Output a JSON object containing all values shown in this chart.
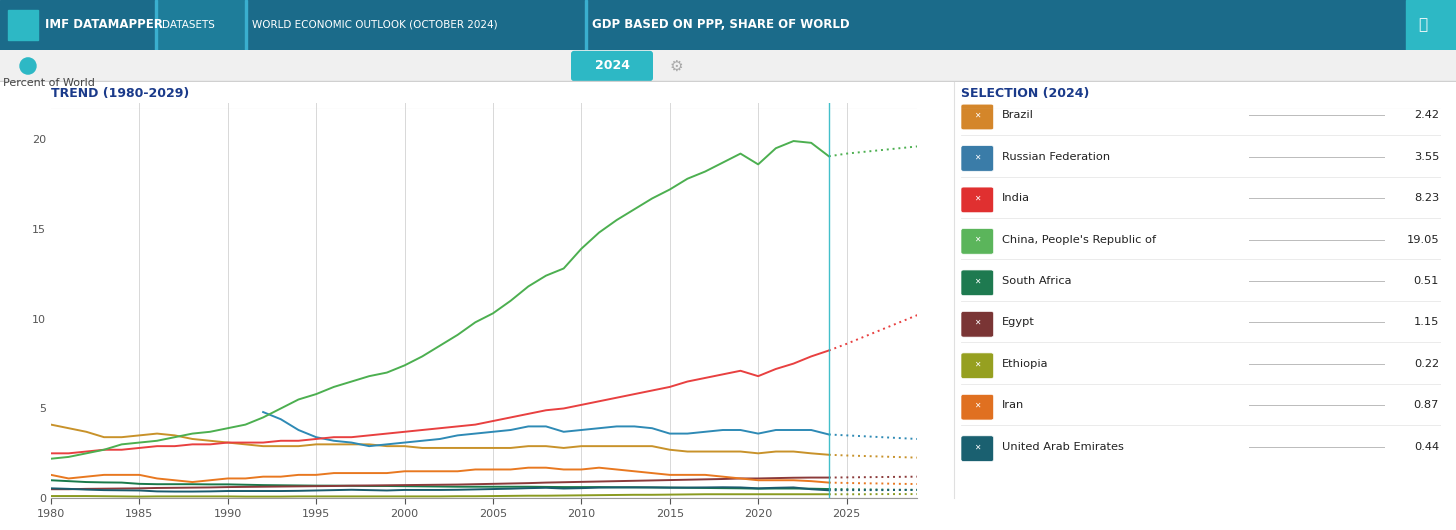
{
  "title_left": "TREND (1980-2029)",
  "title_right": "SELECTION (2024)",
  "ylabel": "Percent of World",
  "year_marker": 2024,
  "xlim": [
    1980,
    2029
  ],
  "ylim": [
    0,
    22
  ],
  "yticks": [
    0,
    5,
    10,
    15,
    20
  ],
  "xticks": [
    1980,
    1985,
    1990,
    1995,
    2000,
    2005,
    2010,
    2015,
    2020,
    2025
  ],
  "countries": [
    "Brazil",
    "Russian Federation",
    "India",
    "China, People's Republic of",
    "South Africa",
    "Egypt",
    "Ethiopia",
    "Iran",
    "United Arab Emirates"
  ],
  "values_2024": [
    2.42,
    3.55,
    8.23,
    19.05,
    0.51,
    1.15,
    0.22,
    0.87,
    0.44
  ],
  "icon_colors": [
    "#d4862a",
    "#3a7ca8",
    "#e03030",
    "#5bb55b",
    "#1e7a50",
    "#7a3535",
    "#96a020",
    "#e07020",
    "#1a6070"
  ],
  "series": {
    "Brazil": {
      "years": [
        1980,
        1981,
        1982,
        1983,
        1984,
        1985,
        1986,
        1987,
        1988,
        1989,
        1990,
        1991,
        1992,
        1993,
        1994,
        1995,
        1996,
        1997,
        1998,
        1999,
        2000,
        2001,
        2002,
        2003,
        2004,
        2005,
        2006,
        2007,
        2008,
        2009,
        2010,
        2011,
        2012,
        2013,
        2014,
        2015,
        2016,
        2017,
        2018,
        2019,
        2020,
        2021,
        2022,
        2023,
        2024,
        2025,
        2026,
        2027,
        2028,
        2029
      ],
      "values": [
        4.1,
        3.9,
        3.7,
        3.4,
        3.4,
        3.5,
        3.6,
        3.5,
        3.3,
        3.2,
        3.1,
        3.0,
        2.9,
        2.9,
        2.9,
        3.0,
        3.0,
        3.0,
        3.0,
        2.9,
        2.9,
        2.8,
        2.8,
        2.8,
        2.8,
        2.8,
        2.8,
        2.9,
        2.9,
        2.8,
        2.9,
        2.9,
        2.9,
        2.9,
        2.9,
        2.7,
        2.6,
        2.6,
        2.6,
        2.6,
        2.5,
        2.6,
        2.6,
        2.5,
        2.42,
        2.38,
        2.35,
        2.32,
        2.29,
        2.26
      ]
    },
    "Russian Federation": {
      "years": [
        1992,
        1993,
        1994,
        1995,
        1996,
        1997,
        1998,
        1999,
        2000,
        2001,
        2002,
        2003,
        2004,
        2005,
        2006,
        2007,
        2008,
        2009,
        2010,
        2011,
        2012,
        2013,
        2014,
        2015,
        2016,
        2017,
        2018,
        2019,
        2020,
        2021,
        2022,
        2023,
        2024,
        2025,
        2026,
        2027,
        2028,
        2029
      ],
      "values": [
        4.8,
        4.4,
        3.8,
        3.4,
        3.2,
        3.1,
        2.9,
        3.0,
        3.1,
        3.2,
        3.3,
        3.5,
        3.6,
        3.7,
        3.8,
        4.0,
        4.0,
        3.7,
        3.8,
        3.9,
        4.0,
        4.0,
        3.9,
        3.6,
        3.6,
        3.7,
        3.8,
        3.8,
        3.6,
        3.8,
        3.8,
        3.8,
        3.55,
        3.5,
        3.45,
        3.4,
        3.35,
        3.3
      ]
    },
    "India": {
      "years": [
        1980,
        1981,
        1982,
        1983,
        1984,
        1985,
        1986,
        1987,
        1988,
        1989,
        1990,
        1991,
        1992,
        1993,
        1994,
        1995,
        1996,
        1997,
        1998,
        1999,
        2000,
        2001,
        2002,
        2003,
        2004,
        2005,
        2006,
        2007,
        2008,
        2009,
        2010,
        2011,
        2012,
        2013,
        2014,
        2015,
        2016,
        2017,
        2018,
        2019,
        2020,
        2021,
        2022,
        2023,
        2024,
        2025,
        2026,
        2027,
        2028,
        2029
      ],
      "values": [
        2.5,
        2.5,
        2.6,
        2.7,
        2.7,
        2.8,
        2.9,
        2.9,
        3.0,
        3.0,
        3.1,
        3.1,
        3.1,
        3.2,
        3.2,
        3.3,
        3.4,
        3.4,
        3.5,
        3.6,
        3.7,
        3.8,
        3.9,
        4.0,
        4.1,
        4.3,
        4.5,
        4.7,
        4.9,
        5.0,
        5.2,
        5.4,
        5.6,
        5.8,
        6.0,
        6.2,
        6.5,
        6.7,
        6.9,
        7.1,
        6.8,
        7.2,
        7.5,
        7.9,
        8.23,
        8.6,
        9.0,
        9.4,
        9.8,
        10.2
      ]
    },
    "China": {
      "years": [
        1980,
        1981,
        1982,
        1983,
        1984,
        1985,
        1986,
        1987,
        1988,
        1989,
        1990,
        1991,
        1992,
        1993,
        1994,
        1995,
        1996,
        1997,
        1998,
        1999,
        2000,
        2001,
        2002,
        2003,
        2004,
        2005,
        2006,
        2007,
        2008,
        2009,
        2010,
        2011,
        2012,
        2013,
        2014,
        2015,
        2016,
        2017,
        2018,
        2019,
        2020,
        2021,
        2022,
        2023,
        2024,
        2025,
        2026,
        2027,
        2028,
        2029
      ],
      "values": [
        2.2,
        2.3,
        2.5,
        2.7,
        3.0,
        3.1,
        3.2,
        3.4,
        3.6,
        3.7,
        3.9,
        4.1,
        4.5,
        5.0,
        5.5,
        5.8,
        6.2,
        6.5,
        6.8,
        7.0,
        7.4,
        7.9,
        8.5,
        9.1,
        9.8,
        10.3,
        11.0,
        11.8,
        12.4,
        12.8,
        13.9,
        14.8,
        15.5,
        16.1,
        16.7,
        17.2,
        17.8,
        18.2,
        18.7,
        19.2,
        18.6,
        19.5,
        19.9,
        19.8,
        19.05,
        19.2,
        19.3,
        19.4,
        19.5,
        19.6
      ]
    },
    "South Africa": {
      "years": [
        1980,
        1981,
        1982,
        1983,
        1984,
        1985,
        1986,
        1987,
        1988,
        1989,
        1990,
        1991,
        1992,
        1993,
        1994,
        1995,
        1996,
        1997,
        1998,
        1999,
        2000,
        2001,
        2002,
        2003,
        2004,
        2005,
        2006,
        2007,
        2008,
        2009,
        2010,
        2011,
        2012,
        2013,
        2014,
        2015,
        2016,
        2017,
        2018,
        2019,
        2020,
        2021,
        2022,
        2023,
        2024,
        2025,
        2026,
        2027,
        2028,
        2029
      ],
      "values": [
        1.0,
        0.95,
        0.9,
        0.88,
        0.87,
        0.8,
        0.78,
        0.78,
        0.78,
        0.77,
        0.77,
        0.75,
        0.73,
        0.72,
        0.71,
        0.7,
        0.7,
        0.69,
        0.68,
        0.68,
        0.67,
        0.66,
        0.65,
        0.64,
        0.64,
        0.64,
        0.64,
        0.64,
        0.63,
        0.62,
        0.62,
        0.62,
        0.61,
        0.61,
        0.6,
        0.59,
        0.58,
        0.57,
        0.56,
        0.55,
        0.53,
        0.54,
        0.54,
        0.53,
        0.51,
        0.5,
        0.49,
        0.48,
        0.47,
        0.47
      ]
    },
    "Egypt": {
      "years": [
        1980,
        1981,
        1982,
        1983,
        1984,
        1985,
        1986,
        1987,
        1988,
        1989,
        1990,
        1991,
        1992,
        1993,
        1994,
        1995,
        1996,
        1997,
        1998,
        1999,
        2000,
        2001,
        2002,
        2003,
        2004,
        2005,
        2006,
        2007,
        2008,
        2009,
        2010,
        2011,
        2012,
        2013,
        2014,
        2015,
        2016,
        2017,
        2018,
        2019,
        2020,
        2021,
        2022,
        2023,
        2024,
        2025,
        2026,
        2027,
        2028,
        2029
      ],
      "values": [
        0.5,
        0.5,
        0.52,
        0.53,
        0.54,
        0.55,
        0.57,
        0.58,
        0.59,
        0.6,
        0.62,
        0.63,
        0.64,
        0.65,
        0.66,
        0.67,
        0.68,
        0.7,
        0.71,
        0.72,
        0.73,
        0.74,
        0.75,
        0.76,
        0.78,
        0.8,
        0.82,
        0.84,
        0.87,
        0.89,
        0.91,
        0.93,
        0.95,
        0.97,
        0.99,
        1.01,
        1.03,
        1.05,
        1.07,
        1.1,
        1.1,
        1.12,
        1.14,
        1.15,
        1.15,
        1.16,
        1.17,
        1.18,
        1.19,
        1.2
      ]
    },
    "Ethiopia": {
      "years": [
        1980,
        1981,
        1982,
        1983,
        1984,
        1985,
        1986,
        1987,
        1988,
        1989,
        1990,
        1991,
        1992,
        1993,
        1994,
        1995,
        1996,
        1997,
        1998,
        1999,
        2000,
        2001,
        2002,
        2003,
        2004,
        2005,
        2006,
        2007,
        2008,
        2009,
        2010,
        2011,
        2012,
        2013,
        2014,
        2015,
        2016,
        2017,
        2018,
        2019,
        2020,
        2021,
        2022,
        2023,
        2024,
        2025,
        2026,
        2027,
        2028,
        2029
      ],
      "values": [
        0.12,
        0.12,
        0.12,
        0.11,
        0.1,
        0.09,
        0.1,
        0.1,
        0.1,
        0.1,
        0.1,
        0.09,
        0.09,
        0.09,
        0.1,
        0.1,
        0.1,
        0.1,
        0.1,
        0.1,
        0.1,
        0.1,
        0.1,
        0.11,
        0.11,
        0.12,
        0.13,
        0.14,
        0.14,
        0.15,
        0.16,
        0.17,
        0.18,
        0.19,
        0.19,
        0.2,
        0.21,
        0.22,
        0.22,
        0.22,
        0.22,
        0.22,
        0.22,
        0.22,
        0.22,
        0.22,
        0.22,
        0.23,
        0.23,
        0.23
      ]
    },
    "Iran": {
      "years": [
        1980,
        1981,
        1982,
        1983,
        1984,
        1985,
        1986,
        1987,
        1988,
        1989,
        1990,
        1991,
        1992,
        1993,
        1994,
        1995,
        1996,
        1997,
        1998,
        1999,
        2000,
        2001,
        2002,
        2003,
        2004,
        2005,
        2006,
        2007,
        2008,
        2009,
        2010,
        2011,
        2012,
        2013,
        2014,
        2015,
        2016,
        2017,
        2018,
        2019,
        2020,
        2021,
        2022,
        2023,
        2024,
        2025,
        2026,
        2027,
        2028,
        2029
      ],
      "values": [
        1.3,
        1.1,
        1.2,
        1.3,
        1.3,
        1.3,
        1.1,
        1.0,
        0.9,
        1.0,
        1.1,
        1.1,
        1.2,
        1.2,
        1.3,
        1.3,
        1.4,
        1.4,
        1.4,
        1.4,
        1.5,
        1.5,
        1.5,
        1.5,
        1.6,
        1.6,
        1.6,
        1.7,
        1.7,
        1.6,
        1.6,
        1.7,
        1.6,
        1.5,
        1.4,
        1.3,
        1.3,
        1.3,
        1.2,
        1.1,
        1.0,
        1.0,
        1.0,
        0.95,
        0.87,
        0.85,
        0.83,
        0.82,
        0.8,
        0.79
      ]
    },
    "UAE": {
      "years": [
        1980,
        1981,
        1982,
        1983,
        1984,
        1985,
        1986,
        1987,
        1988,
        1989,
        1990,
        1991,
        1992,
        1993,
        1994,
        1995,
        1996,
        1997,
        1998,
        1999,
        2000,
        2001,
        2002,
        2003,
        2004,
        2005,
        2006,
        2007,
        2008,
        2009,
        2010,
        2011,
        2012,
        2013,
        2014,
        2015,
        2016,
        2017,
        2018,
        2019,
        2020,
        2021,
        2022,
        2023,
        2024,
        2025,
        2026,
        2027,
        2028,
        2029
      ],
      "values": [
        0.55,
        0.52,
        0.48,
        0.45,
        0.44,
        0.43,
        0.38,
        0.37,
        0.37,
        0.38,
        0.4,
        0.4,
        0.4,
        0.4,
        0.41,
        0.43,
        0.45,
        0.47,
        0.45,
        0.43,
        0.46,
        0.46,
        0.46,
        0.47,
        0.49,
        0.51,
        0.53,
        0.56,
        0.58,
        0.54,
        0.56,
        0.59,
        0.6,
        0.6,
        0.6,
        0.59,
        0.59,
        0.6,
        0.61,
        0.6,
        0.55,
        0.58,
        0.6,
        0.5,
        0.44,
        0.45,
        0.45,
        0.45,
        0.46,
        0.46
      ]
    }
  },
  "line_colors": {
    "Brazil": "#c8922a",
    "Russian Federation": "#2e8ab5",
    "India": "#e84040",
    "China": "#4caf50",
    "South Africa": "#1a7a4a",
    "Egypt": "#8b3a3a",
    "Ethiopia": "#8a9a20",
    "Iran": "#e87820",
    "UAE": "#1a5c6e"
  },
  "header_dark": "#1b6b8a",
  "header_mid": "#2494b8",
  "teal_badge": "#2db8c5",
  "white": "#ffffff",
  "text_dark": "#333333",
  "title_blue": "#1a3a8a"
}
